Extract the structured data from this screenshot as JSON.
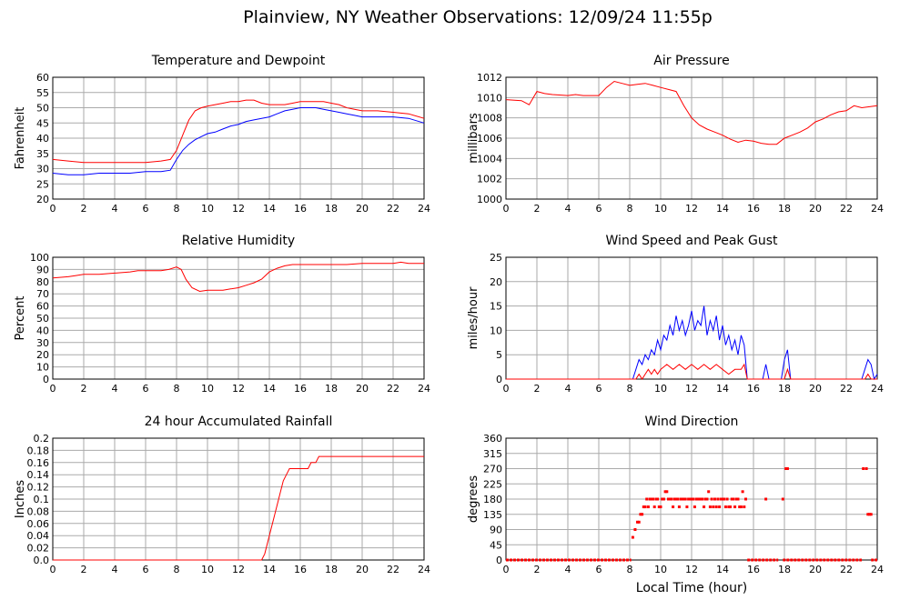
{
  "page": {
    "title": "Plainview, NY Weather Observations: 12/09/24 11:55p"
  },
  "colors": {
    "red": "#ff0000",
    "blue": "#0000ff",
    "grid": "#aaaaaa",
    "axis": "#000000"
  },
  "chart_data": [
    {
      "id": "temp",
      "type": "line",
      "title": "Temperature and Dewpoint",
      "xlabel": "",
      "ylabel": "Fahrenheit",
      "xlim": [
        0,
        24
      ],
      "ylim": [
        20,
        60
      ],
      "x_ticks": [
        0,
        2,
        4,
        6,
        8,
        10,
        12,
        14,
        16,
        18,
        20,
        22,
        24
      ],
      "y_ticks": [
        20,
        25,
        30,
        35,
        40,
        45,
        50,
        55,
        60
      ],
      "grid": true,
      "series": [
        {
          "color": "#ff0000",
          "x": [
            0,
            1,
            2,
            3,
            4,
            5,
            6,
            7,
            7.6,
            8,
            8.4,
            8.8,
            9.2,
            9.6,
            10,
            10.5,
            11,
            11.5,
            12,
            12.5,
            13,
            13.5,
            14,
            14.5,
            15,
            15.5,
            16,
            16.5,
            17,
            17.5,
            18,
            18.5,
            19,
            19.5,
            20,
            21,
            22,
            23,
            24
          ],
          "y": [
            33,
            32.5,
            32,
            32,
            32,
            32,
            32,
            32.5,
            33,
            36,
            41,
            46,
            49,
            50,
            50.5,
            51,
            51.5,
            52,
            52,
            52.5,
            52.5,
            51.5,
            51,
            51,
            51,
            51.5,
            52,
            52,
            52,
            52,
            51.5,
            51,
            50,
            49.5,
            49,
            49,
            48.5,
            48,
            46.5
          ]
        },
        {
          "color": "#0000ff",
          "x": [
            0,
            1,
            2,
            3,
            4,
            5,
            6,
            7,
            7.6,
            8,
            8.4,
            8.8,
            9.2,
            9.6,
            10,
            10.5,
            11,
            11.5,
            12,
            12.5,
            13,
            13.5,
            14,
            14.5,
            15,
            15.5,
            16,
            16.5,
            17,
            17.5,
            18,
            18.5,
            19,
            19.5,
            20,
            21,
            22,
            23,
            24
          ],
          "y": [
            28.5,
            28,
            28,
            28.5,
            28.5,
            28.5,
            29,
            29,
            29.5,
            33,
            36,
            38,
            39.5,
            40.5,
            41.5,
            42,
            43,
            44,
            44.5,
            45.5,
            46,
            46.5,
            47,
            48,
            49,
            49.5,
            50,
            50,
            50,
            49.5,
            49,
            48.5,
            48,
            47.5,
            47,
            47,
            47,
            46.5,
            45
          ]
        }
      ]
    },
    {
      "id": "pressure",
      "type": "line",
      "title": "Air Pressure",
      "xlabel": "",
      "ylabel": "millibars",
      "xlim": [
        0,
        24
      ],
      "ylim": [
        1000,
        1012
      ],
      "x_ticks": [
        0,
        2,
        4,
        6,
        8,
        10,
        12,
        14,
        16,
        18,
        20,
        22,
        24
      ],
      "y_ticks": [
        1000,
        1002,
        1004,
        1006,
        1008,
        1010,
        1012
      ],
      "grid": true,
      "series": [
        {
          "color": "#ff0000",
          "x": [
            0,
            1,
            1.5,
            2,
            2.5,
            3,
            4,
            4.5,
            5,
            6,
            6.5,
            7,
            7.5,
            8,
            8.5,
            9,
            9.5,
            10,
            10.5,
            11,
            11.5,
            12,
            12.5,
            13,
            13.5,
            14,
            14.5,
            15,
            15.5,
            16,
            16.5,
            17,
            17.5,
            18,
            18.5,
            19,
            19.5,
            20,
            20.5,
            21,
            21.5,
            22,
            22.5,
            23,
            23.5,
            24
          ],
          "y": [
            1009.8,
            1009.7,
            1009.3,
            1010.6,
            1010.4,
            1010.3,
            1010.2,
            1010.3,
            1010.2,
            1010.2,
            1011,
            1011.6,
            1011.4,
            1011.2,
            1011.3,
            1011.4,
            1011.2,
            1011,
            1010.8,
            1010.6,
            1009.2,
            1008,
            1007.3,
            1006.9,
            1006.6,
            1006.3,
            1005.9,
            1005.6,
            1005.8,
            1005.7,
            1005.5,
            1005.4,
            1005.4,
            1006,
            1006.3,
            1006.6,
            1007,
            1007.6,
            1007.9,
            1008.3,
            1008.6,
            1008.7,
            1009.2,
            1009,
            1009.1,
            1009.2
          ]
        }
      ]
    },
    {
      "id": "humidity",
      "type": "line",
      "title": "Relative Humidity",
      "xlabel": "",
      "ylabel": "Percent",
      "xlim": [
        0,
        24
      ],
      "ylim": [
        0,
        100
      ],
      "x_ticks": [
        0,
        2,
        4,
        6,
        8,
        10,
        12,
        14,
        16,
        18,
        20,
        22,
        24
      ],
      "y_ticks": [
        0,
        10,
        20,
        30,
        40,
        50,
        60,
        70,
        80,
        90,
        100
      ],
      "grid": true,
      "series": [
        {
          "color": "#ff0000",
          "x": [
            0,
            1,
            1.5,
            2,
            3,
            4,
            5,
            5.5,
            6,
            7,
            7.5,
            8,
            8.3,
            8.6,
            9,
            9.5,
            10,
            10.5,
            11,
            11.5,
            12,
            12.5,
            13,
            13.5,
            14,
            14.5,
            15,
            15.5,
            16,
            17,
            18,
            19,
            20,
            21,
            22,
            22.5,
            23,
            24
          ],
          "y": [
            83,
            84,
            85,
            86,
            86,
            87,
            88,
            89,
            89,
            89,
            90,
            92,
            90,
            82,
            75,
            72,
            73,
            73,
            73,
            74,
            75,
            77,
            79,
            82,
            88,
            91,
            93,
            94,
            94,
            94,
            94,
            94,
            95,
            95,
            95,
            96,
            95,
            95
          ]
        }
      ]
    },
    {
      "id": "wind",
      "type": "line",
      "title": "Wind Speed and Peak Gust",
      "xlabel": "",
      "ylabel": "miles/hour",
      "xlim": [
        0,
        24
      ],
      "ylim": [
        0,
        25
      ],
      "x_ticks": [
        0,
        2,
        4,
        6,
        8,
        10,
        12,
        14,
        16,
        18,
        20,
        22,
        24
      ],
      "y_ticks": [
        0,
        5,
        10,
        15,
        20,
        25
      ],
      "grid": true,
      "series": [
        {
          "color": "#0000ff",
          "x": [
            0,
            8.2,
            8.4,
            8.6,
            8.8,
            9,
            9.2,
            9.4,
            9.6,
            9.8,
            10,
            10.2,
            10.4,
            10.6,
            10.8,
            11,
            11.2,
            11.4,
            11.6,
            11.8,
            12,
            12.2,
            12.4,
            12.6,
            12.8,
            13,
            13.2,
            13.4,
            13.6,
            13.8,
            14,
            14.2,
            14.4,
            14.6,
            14.8,
            15,
            15.2,
            15.4,
            15.6,
            15.8,
            16.6,
            16.8,
            17,
            17.8,
            18,
            18.2,
            18.4,
            23,
            23.2,
            23.4,
            23.6,
            23.8,
            24
          ],
          "y": [
            0,
            0,
            2,
            4,
            3,
            5,
            4,
            6,
            5,
            8,
            6,
            9,
            8,
            11,
            9,
            13,
            10,
            12,
            9,
            11,
            14,
            10,
            12,
            11,
            15,
            9,
            12,
            10,
            13,
            8,
            11,
            7,
            9,
            6,
            8,
            5,
            9,
            7,
            0,
            0,
            0,
            3,
            0,
            0,
            4,
            6,
            0,
            0,
            2,
            4,
            3,
            0,
            1
          ]
        },
        {
          "color": "#ff0000",
          "x": [
            0,
            8.4,
            8.6,
            8.8,
            9,
            9.2,
            9.4,
            9.6,
            9.8,
            10,
            10.4,
            10.8,
            11.2,
            11.6,
            12,
            12.4,
            12.8,
            13.2,
            13.6,
            14,
            14.4,
            14.8,
            15.2,
            15.4,
            15.6,
            18,
            18.2,
            18.4,
            23.2,
            23.4,
            23.6,
            24
          ],
          "y": [
            0,
            0,
            1,
            0,
            1,
            2,
            1,
            2,
            1,
            2,
            3,
            2,
            3,
            2,
            3,
            2,
            3,
            2,
            3,
            2,
            1,
            2,
            2,
            3,
            0,
            0,
            2,
            0,
            0,
            1,
            0,
            0
          ]
        }
      ]
    },
    {
      "id": "rain",
      "type": "line",
      "title": "24 hour Accumulated Rainfall",
      "xlabel": "",
      "ylabel": "Inches",
      "xlim": [
        0,
        24
      ],
      "ylim": [
        0,
        0.2
      ],
      "x_ticks": [
        0,
        2,
        4,
        6,
        8,
        10,
        12,
        14,
        16,
        18,
        20,
        22,
        24
      ],
      "y_ticks": [
        0.0,
        0.02,
        0.04,
        0.06,
        0.08,
        0.1,
        0.12,
        0.14,
        0.16,
        0.18,
        0.2
      ],
      "y_tick_labels": [
        "0.0",
        "0.02",
        "0.04",
        "0.06",
        "0.08",
        "0.1",
        "0.12",
        "0.14",
        "0.16",
        "0.18",
        "0.2"
      ],
      "grid": true,
      "series": [
        {
          "color": "#ff0000",
          "x": [
            0,
            13.5,
            13.7,
            13.9,
            14.1,
            14.3,
            14.5,
            14.7,
            14.9,
            15.1,
            15.3,
            16.5,
            16.7,
            17,
            17.2,
            17.5,
            24
          ],
          "y": [
            0,
            0,
            0.01,
            0.03,
            0.05,
            0.07,
            0.09,
            0.11,
            0.13,
            0.14,
            0.15,
            0.15,
            0.16,
            0.16,
            0.17,
            0.17,
            0.17
          ]
        }
      ]
    },
    {
      "id": "direction",
      "type": "scatter",
      "title": "Wind Direction",
      "xlabel": "Local Time (hour)",
      "ylabel": "degrees",
      "xlim": [
        0,
        24
      ],
      "ylim": [
        0,
        360
      ],
      "x_ticks": [
        0,
        2,
        4,
        6,
        8,
        10,
        12,
        14,
        16,
        18,
        20,
        22,
        24
      ],
      "y_ticks": [
        0,
        45,
        90,
        135,
        180,
        225,
        270,
        315,
        360
      ],
      "grid": true,
      "series": [
        {
          "color": "#ff0000",
          "x": [
            8.2,
            8.35,
            8.5,
            8.6,
            8.7,
            8.8,
            8.9,
            9,
            9.1,
            9.2,
            9.3,
            9.4,
            9.5,
            9.6,
            9.7,
            9.8,
            9.9,
            10,
            10.1,
            10.2,
            10.3,
            10.4,
            10.5,
            10.6,
            10.7,
            10.8,
            10.9,
            11,
            11.1,
            11.2,
            11.3,
            11.4,
            11.5,
            11.6,
            11.7,
            11.8,
            11.9,
            12,
            12.1,
            12.2,
            12.3,
            12.4,
            12.5,
            12.6,
            12.7,
            12.8,
            12.9,
            13,
            13.1,
            13.2,
            13.3,
            13.4,
            13.5,
            13.6,
            13.7,
            13.8,
            13.9,
            14,
            14.1,
            14.2,
            14.3,
            14.4,
            14.5,
            14.6,
            14.7,
            14.8,
            14.9,
            15,
            15.1,
            15.2,
            15.3,
            15.4,
            15.5,
            16.8,
            17.9,
            18.1,
            18.2,
            23.1,
            23.3,
            23.4,
            23.5,
            23.6
          ],
          "y": [
            67,
            90,
            112,
            112,
            135,
            135,
            157,
            157,
            180,
            157,
            180,
            180,
            180,
            157,
            180,
            180,
            157,
            157,
            180,
            180,
            202,
            202,
            180,
            180,
            180,
            157,
            180,
            180,
            180,
            157,
            180,
            180,
            180,
            180,
            157,
            180,
            180,
            180,
            180,
            157,
            180,
            180,
            180,
            180,
            180,
            157,
            180,
            180,
            202,
            157,
            180,
            157,
            180,
            157,
            180,
            157,
            180,
            180,
            180,
            157,
            180,
            157,
            157,
            180,
            180,
            157,
            180,
            180,
            157,
            157,
            202,
            157,
            180,
            180,
            180,
            270,
            270,
            270,
            270,
            135,
            135,
            135
          ]
        },
        {
          "color": "#ff0000",
          "segments": [
            [
              0,
              8.1
            ],
            [
              15.6,
              17.6
            ],
            [
              17.9,
              23.0
            ],
            [
              23.6,
              24
            ]
          ],
          "value": 0
        }
      ]
    }
  ]
}
